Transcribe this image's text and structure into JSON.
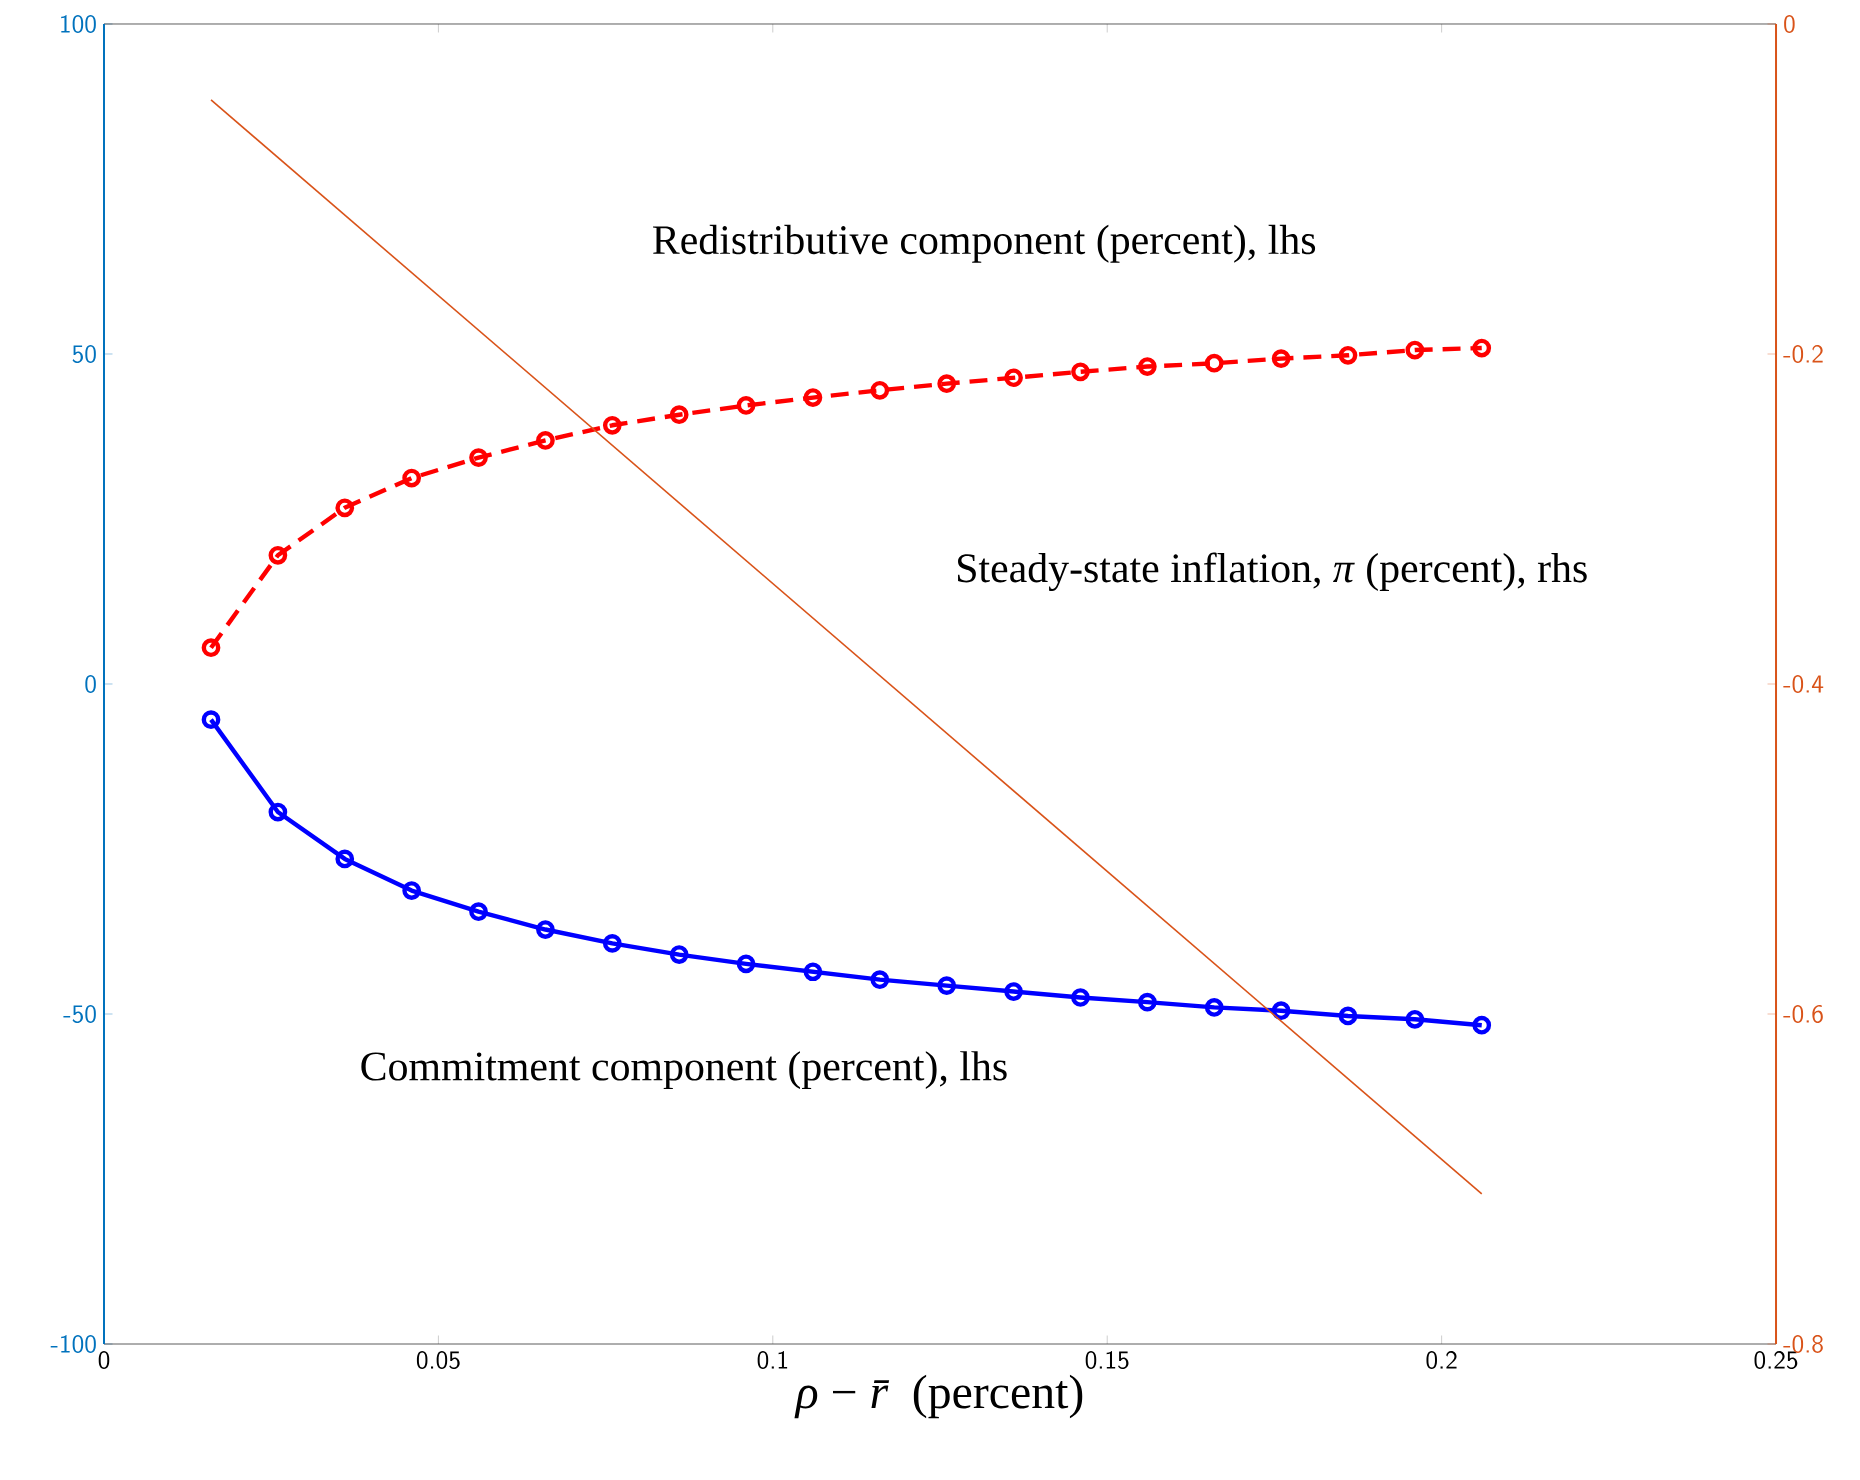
{
  "chart_data": {
    "type": "line",
    "xlabel": "*ρ* − *r̄* (percent)",
    "x": [
      0.016,
      0.026,
      0.036,
      0.046,
      0.056,
      0.066,
      0.076,
      0.086,
      0.096,
      0.106,
      0.116,
      0.126,
      0.136,
      0.146,
      0.156,
      0.166,
      0.176,
      0.186,
      0.196,
      0.206
    ],
    "series": [
      {
        "name": "Redistributive component (percent), lhs",
        "color": "#ff0000",
        "marker": "circle",
        "line_style": "dashed",
        "values": [
          5.5,
          19.5,
          26.7,
          31.2,
          34.3,
          36.9,
          39.2,
          40.8,
          42.2,
          43.4,
          44.5,
          45.5,
          46.4,
          47.3,
          48.1,
          48.6,
          49.3,
          49.8,
          50.6,
          50.9
        ]
      },
      {
        "name": "Steady-state inflation, *π* (percent), rhs",
        "color": "#d95319",
        "marker": "none",
        "line_style": "solid",
        "axis": "y2",
        "x": [
          0.016,
          0.206
        ],
        "values": [
          -0.046,
          -0.709
        ]
      },
      {
        "name": "Commitment component (percent), lhs",
        "color": "#0000ff",
        "marker": "circle",
        "line_style": "solid",
        "values": [
          -5.4,
          -19.4,
          -26.5,
          -31.3,
          -34.5,
          -37.2,
          -39.3,
          -41.0,
          -42.4,
          -43.6,
          -44.8,
          -45.7,
          -46.6,
          -47.5,
          -48.2,
          -49.0,
          -49.5,
          -50.3,
          -50.8,
          -51.7
        ]
      }
    ],
    "xlim": [
      0,
      0.25
    ],
    "xticks": [
      0,
      0.05,
      0.1,
      0.15,
      0.2,
      0.25
    ],
    "ylim": [
      -100,
      100
    ],
    "yticks": [
      -100,
      -50,
      0,
      50,
      100
    ],
    "y2lim": [
      -0.8,
      0
    ],
    "y2ticks": [
      -0.8,
      -0.6,
      -0.4,
      -0.2,
      0
    ],
    "grid": false
  }
}
